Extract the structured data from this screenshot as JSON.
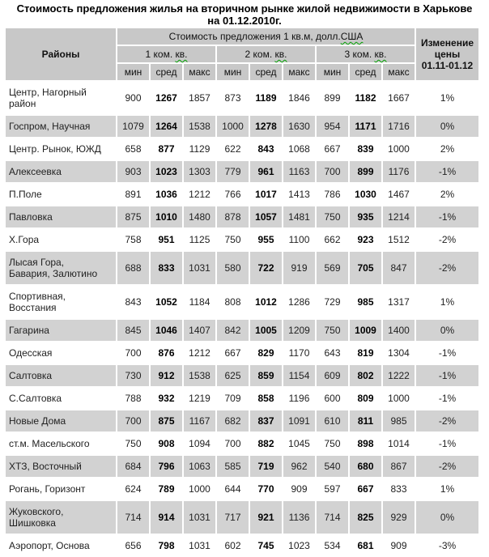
{
  "title": {
    "line1": "Стоимость предложения  жилья на вторичном рынке жилой недвижимости в Харькове",
    "line2": "на 01.12.2010г."
  },
  "colors": {
    "header_cell_gray": "#c8c8c8",
    "striped_row_gray": "#d2d2d2",
    "spellcheck_squiggle_green": "#00a000",
    "bottom_rule_black": "#1c1c1c"
  },
  "table": {
    "districts_header": "Районы",
    "price_header": {
      "prefix": "Стоимость предложения 1 кв.м, долл.",
      "squiggle": "США"
    },
    "change_header_lines": [
      "Изменение",
      "цены",
      "01.11-01.12"
    ],
    "room_groups": [
      {
        "prefix": "1 ком. ",
        "squiggle": "кв."
      },
      {
        "prefix": "2 ком. ",
        "squiggle": "кв."
      },
      {
        "prefix": "3 ком. ",
        "squiggle": "кв."
      }
    ],
    "stat_headers": [
      "мин",
      "сред",
      "макс"
    ],
    "rows": [
      {
        "district": "Центр, Нагорный район",
        "values": [
          900,
          1267,
          1857,
          873,
          1189,
          1846,
          899,
          1182,
          1667
        ],
        "change": "1%"
      },
      {
        "district": "Госпром, Научная",
        "values": [
          1079,
          1264,
          1538,
          1000,
          1278,
          1630,
          954,
          1171,
          1716
        ],
        "change": "0%"
      },
      {
        "district": "Центр. Рынок,  ЮЖД",
        "values": [
          658,
          877,
          1129,
          622,
          843,
          1068,
          667,
          839,
          1000
        ],
        "change": "2%"
      },
      {
        "district": "Алексеевка",
        "values": [
          903,
          1023,
          1303,
          779,
          961,
          1163,
          700,
          899,
          1176
        ],
        "change": "-1%"
      },
      {
        "district": "П.Поле",
        "values": [
          891,
          1036,
          1212,
          766,
          1017,
          1413,
          786,
          1030,
          1467
        ],
        "change": "2%"
      },
      {
        "district": "Павловка",
        "values": [
          875,
          1010,
          1480,
          878,
          1057,
          1481,
          750,
          935,
          1214
        ],
        "change": "-1%"
      },
      {
        "district": "Х.Гора",
        "values": [
          758,
          951,
          1125,
          750,
          955,
          1100,
          662,
          923,
          1512
        ],
        "change": "-2%"
      },
      {
        "district": "Лысая Гора, Бавария, Залютино",
        "values": [
          688,
          833,
          1031,
          580,
          722,
          919,
          569,
          705,
          847
        ],
        "change": "-2%"
      },
      {
        "district": "Спортивная, Восстания",
        "values": [
          843,
          1052,
          1184,
          808,
          1012,
          1286,
          729,
          985,
          1317
        ],
        "change": "1%"
      },
      {
        "district": "Гагарина",
        "values": [
          845,
          1046,
          1407,
          842,
          1005,
          1209,
          750,
          1009,
          1400
        ],
        "change": "0%"
      },
      {
        "district": "Одесская",
        "values": [
          700,
          876,
          1212,
          667,
          829,
          1170,
          643,
          819,
          1304
        ],
        "change": "-1%"
      },
      {
        "district": "Салтовка",
        "values": [
          730,
          912,
          1538,
          625,
          859,
          1154,
          609,
          802,
          1222
        ],
        "change": "-1%"
      },
      {
        "district": "С.Салтовка",
        "values": [
          788,
          932,
          1219,
          709,
          858,
          1196,
          600,
          809,
          1000
        ],
        "change": "-1%"
      },
      {
        "district": "Новые Дома",
        "values": [
          700,
          875,
          1167,
          682,
          837,
          1091,
          610,
          811,
          985
        ],
        "change": "-2%"
      },
      {
        "district": "ст.м. Масельского",
        "values": [
          750,
          908,
          1094,
          700,
          882,
          1045,
          750,
          898,
          1014
        ],
        "change": "-1%"
      },
      {
        "district": "ХТЗ, Восточный",
        "values": [
          684,
          796,
          1063,
          585,
          719,
          962,
          540,
          680,
          867
        ],
        "change": "-2%"
      },
      {
        "district": "Рогань, Горизонт",
        "values": [
          624,
          789,
          1000,
          644,
          770,
          909,
          597,
          667,
          833
        ],
        "change": "1%"
      },
      {
        "district": "Жуковского, Шишковка",
        "values": [
          714,
          914,
          1031,
          717,
          921,
          1136,
          714,
          825,
          929
        ],
        "change": "0%"
      },
      {
        "district": "Аэропорт, Основа",
        "values": [
          656,
          798,
          1031,
          602,
          745,
          1023,
          534,
          681,
          909
        ],
        "change": "-3%"
      }
    ]
  }
}
